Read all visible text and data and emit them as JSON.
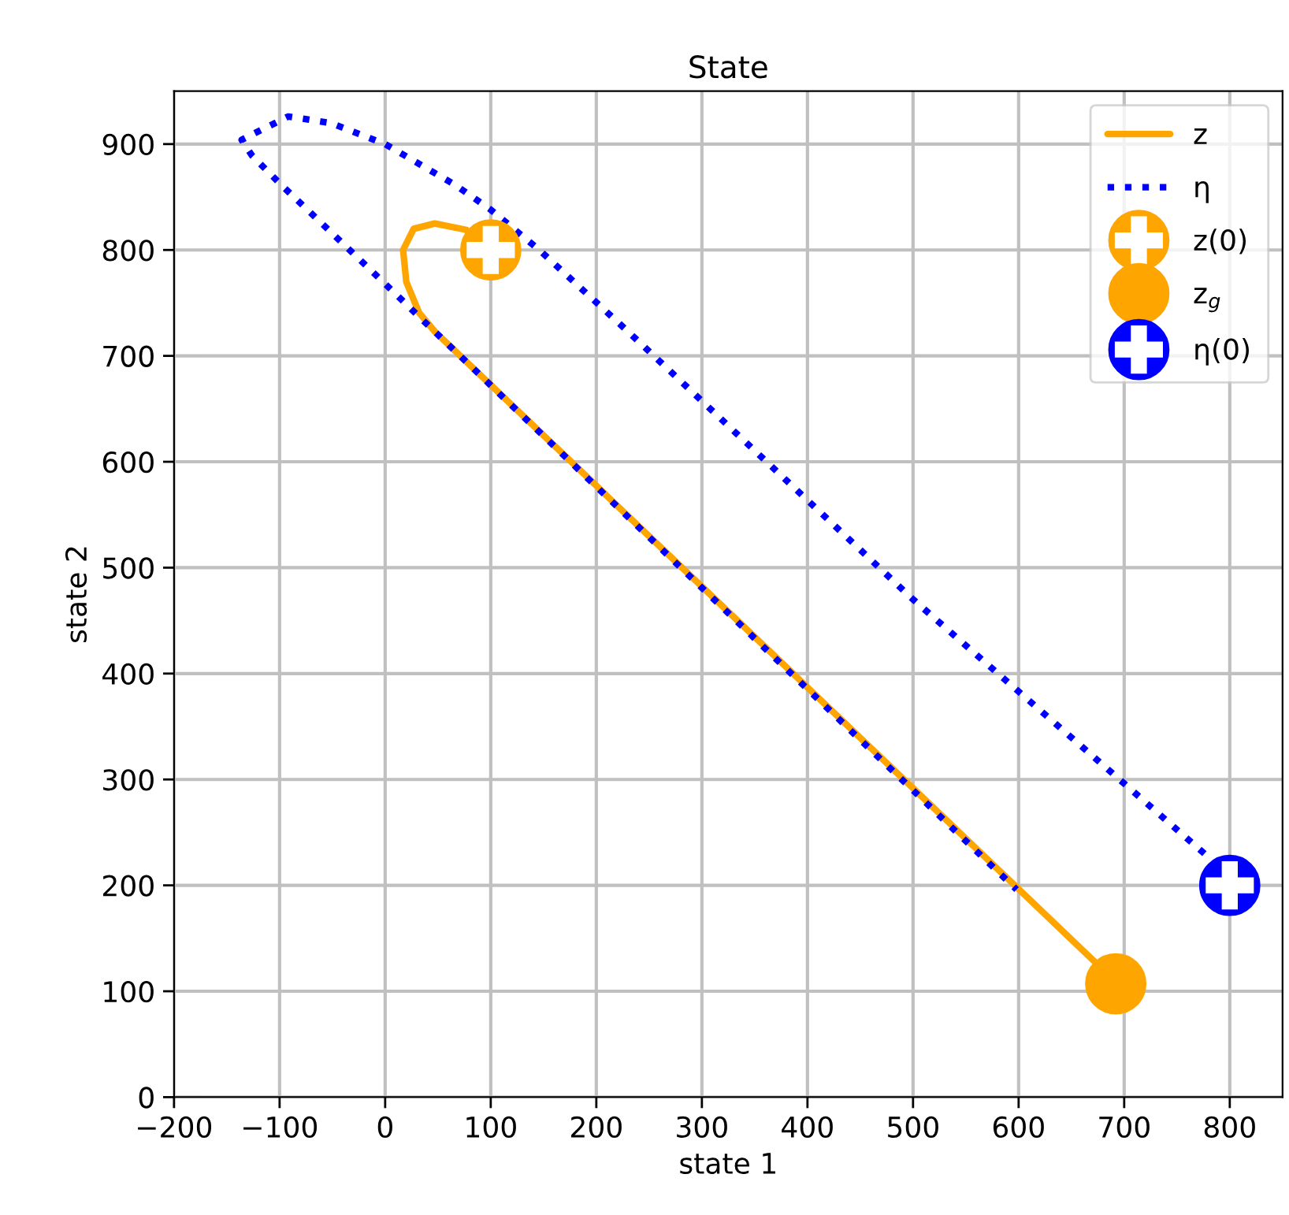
{
  "chart_data": {
    "type": "line",
    "title": "State",
    "xlabel": "state 1",
    "ylabel": "state 2",
    "xlim": [
      -200,
      850
    ],
    "ylim": [
      0,
      950
    ],
    "xticks": [
      -200,
      -100,
      0,
      100,
      200,
      300,
      400,
      500,
      600,
      700,
      800
    ],
    "yticks": [
      0,
      100,
      200,
      300,
      400,
      500,
      600,
      700,
      800,
      900
    ],
    "grid": true,
    "legend": "top right",
    "series": [
      {
        "name": "z",
        "line_style": "solid",
        "color": "#ffa500",
        "x": [
          77,
          47,
          27,
          17,
          20,
          32,
          47,
          672
        ],
        "values": [
          819,
          825,
          820,
          800,
          770,
          741,
          723,
          128
        ]
      },
      {
        "name": "η",
        "line_style": "dotted",
        "color": "#0000ff",
        "x": [
          776,
          500,
          230,
          146,
          100,
          67,
          0,
          -52,
          -92,
          -136,
          -126,
          -98,
          -42,
          0,
          27,
          598
        ],
        "values": [
          230,
          470,
          723,
          800,
          838,
          861,
          900,
          920,
          926,
          904,
          889,
          861,
          808,
          768,
          742,
          196
        ]
      },
      {
        "name": "z(0)",
        "type": "scatter",
        "color": "#ffa500",
        "x": [
          100
        ],
        "values": [
          800
        ]
      },
      {
        "name": "z$_{g}$",
        "type": "scatter",
        "marker": "circle",
        "color": "#ffa500",
        "x": [
          692
        ],
        "values": [
          107
        ]
      },
      {
        "name": "η(0)",
        "type": "scatter",
        "color": "#0000ff",
        "x": [
          800
        ],
        "values": [
          200
        ]
      }
    ]
  }
}
